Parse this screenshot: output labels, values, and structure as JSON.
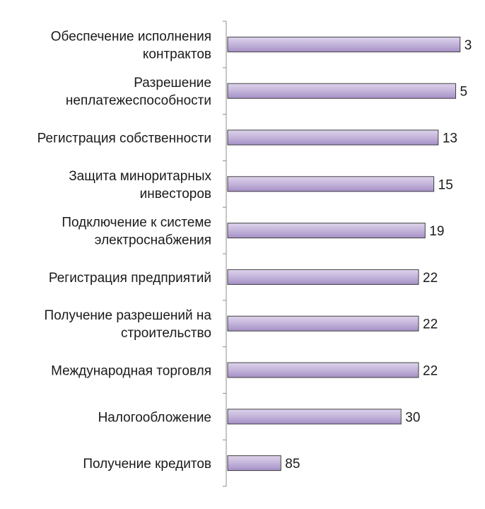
{
  "chart_data": {
    "type": "bar",
    "orientation": "horizontal",
    "categories": [
      [
        "Обеспечение исполнения",
        "контрактов"
      ],
      [
        "Разрешение",
        "неплатежеспособности"
      ],
      [
        "Регистрация собственности"
      ],
      [
        "Защита миноритарных",
        "инвесторов"
      ],
      [
        "Подключение к системе",
        "электроснабжения"
      ],
      [
        "Регистрация предприятий"
      ],
      [
        "Получение разрешений на",
        "строительство"
      ],
      [
        "Международная торговля"
      ],
      [
        "Налогообложение"
      ],
      [
        "Получение кредитов"
      ]
    ],
    "values": [
      3,
      5,
      13,
      15,
      19,
      22,
      22,
      22,
      30,
      85
    ],
    "axis_reversed": true,
    "xlim": [
      0,
      110
    ],
    "grid": false,
    "legend": "none",
    "bar_color": "#c3b4da",
    "bar_color_light": "#ddd3ec",
    "bar_color_dark": "#a48fc6",
    "title": "",
    "xlabel": "",
    "ylabel": ""
  }
}
